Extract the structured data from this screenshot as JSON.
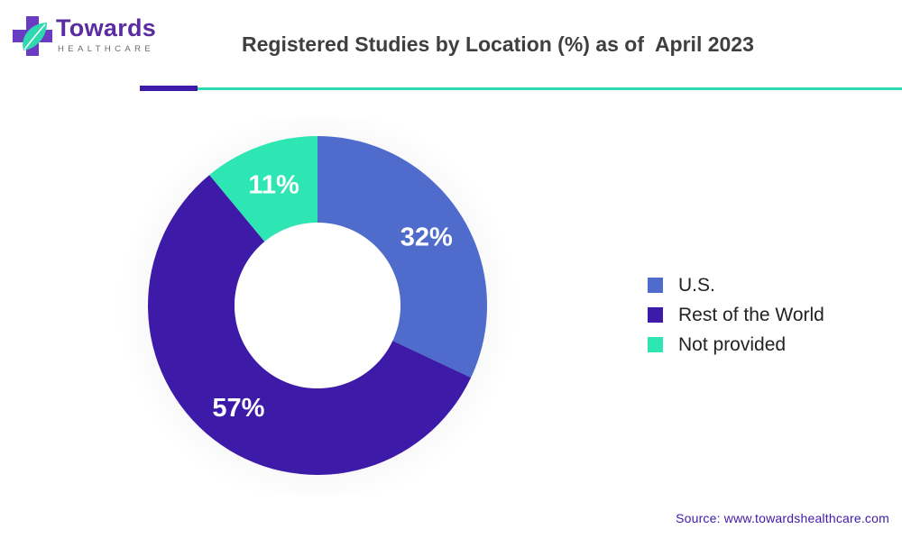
{
  "brand": {
    "name": "Towards",
    "tagline": "HEALTHCARE",
    "colors": {
      "primary": "#5b2ca0",
      "accent": "#2fd9b0"
    }
  },
  "source_text": "Source: www.towardshealthcare.com",
  "chart_data": {
    "type": "pie",
    "variant": "donut",
    "title": "Registered Studies by Location (%) as of  April 2023",
    "categories": [
      "U.S.",
      "Rest of the World",
      "Not provided"
    ],
    "values": [
      32,
      57,
      11
    ],
    "data_labels": [
      "32%",
      "57%",
      "11%"
    ],
    "colors": [
      "#4f6ccd",
      "#3d1aa8",
      "#2ee6b4"
    ],
    "legend_position": "right"
  }
}
